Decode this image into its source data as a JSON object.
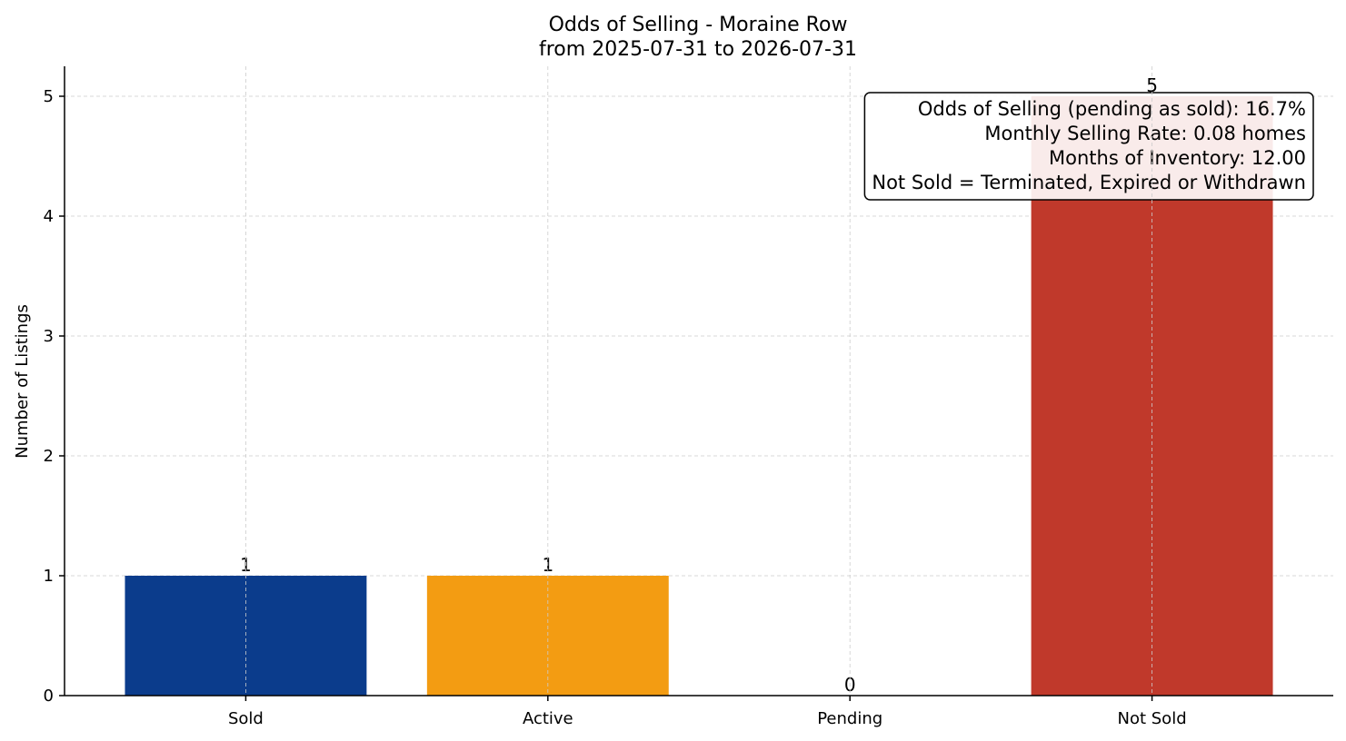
{
  "chart_data": {
    "type": "bar",
    "title": "Odds of Selling - Moraine Row",
    "subtitle": "from 2025-07-31 to 2026-07-31",
    "xlabel": "",
    "ylabel": "Number of Listings",
    "categories": [
      "Sold",
      "Active",
      "Pending",
      "Not Sold"
    ],
    "values": [
      1,
      1,
      0,
      5
    ],
    "data_labels": [
      "1",
      "1",
      "0",
      "5"
    ],
    "colors": [
      "#0b3c8c",
      "#f39c12",
      "#7f8c8d",
      "#c0392b"
    ],
    "ylim": [
      0,
      5.25
    ],
    "yticks": [
      0,
      1,
      2,
      3,
      4,
      5
    ],
    "grid": true,
    "info_box": {
      "placement": "top-right",
      "lines": [
        "Odds of Selling (pending as sold): 16.7%",
        "Monthly Selling Rate: 0.08 homes",
        "Months of Inventory: 12.00",
        "Not Sold = Terminated, Expired or Withdrawn"
      ]
    }
  }
}
